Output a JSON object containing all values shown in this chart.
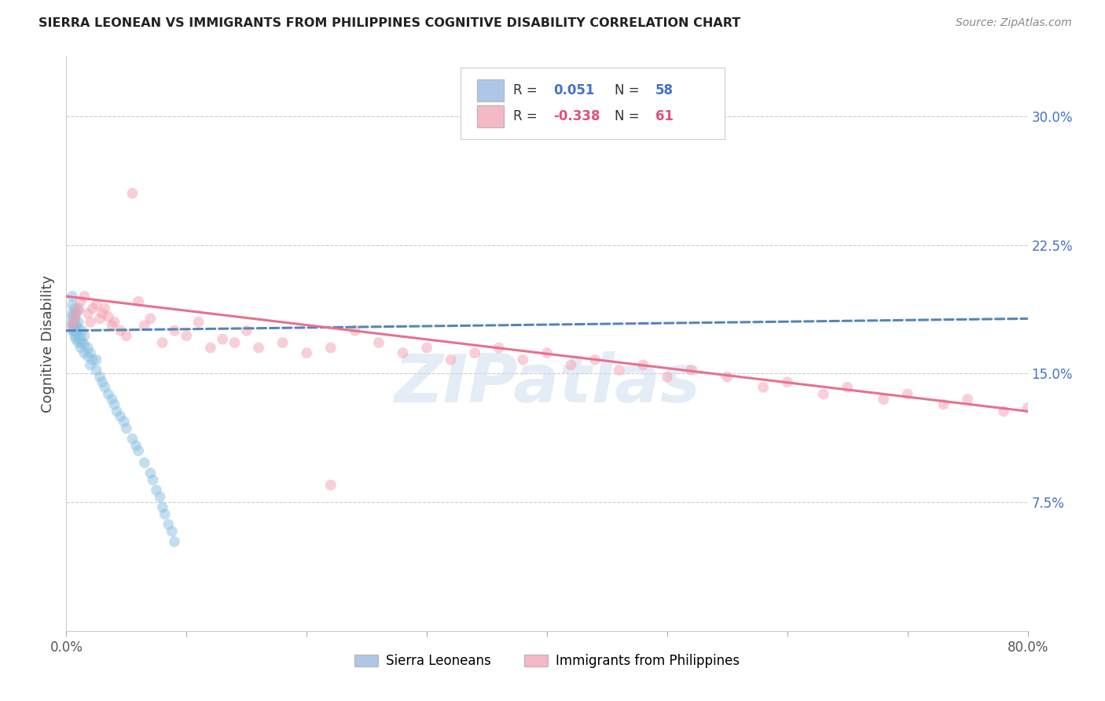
{
  "title": "SIERRA LEONEAN VS IMMIGRANTS FROM PHILIPPINES COGNITIVE DISABILITY CORRELATION CHART",
  "source": "Source: ZipAtlas.com",
  "ylabel": "Cognitive Disability",
  "right_yticks": [
    "30.0%",
    "22.5%",
    "15.0%",
    "7.5%"
  ],
  "right_ytick_vals": [
    0.3,
    0.225,
    0.15,
    0.075
  ],
  "xlim": [
    0.0,
    0.8
  ],
  "ylim": [
    0.0,
    0.335
  ],
  "sl_scatter_x": [
    0.005,
    0.005,
    0.005,
    0.005,
    0.005,
    0.005,
    0.005,
    0.007,
    0.007,
    0.007,
    0.007,
    0.007,
    0.008,
    0.008,
    0.008,
    0.008,
    0.01,
    0.01,
    0.01,
    0.01,
    0.01,
    0.012,
    0.012,
    0.013,
    0.013,
    0.015,
    0.015,
    0.015,
    0.018,
    0.018,
    0.02,
    0.02,
    0.022,
    0.025,
    0.025,
    0.028,
    0.03,
    0.032,
    0.035,
    0.038,
    0.04,
    0.042,
    0.045,
    0.048,
    0.05,
    0.055,
    0.058,
    0.06,
    0.065,
    0.07,
    0.072,
    0.075,
    0.078,
    0.08,
    0.082,
    0.085,
    0.088,
    0.09
  ],
  "sl_scatter_y": [
    0.175,
    0.178,
    0.18,
    0.183,
    0.185,
    0.19,
    0.195,
    0.172,
    0.175,
    0.178,
    0.182,
    0.188,
    0.17,
    0.174,
    0.178,
    0.185,
    0.168,
    0.172,
    0.176,
    0.18,
    0.187,
    0.165,
    0.17,
    0.168,
    0.175,
    0.162,
    0.167,
    0.172,
    0.16,
    0.165,
    0.155,
    0.162,
    0.158,
    0.152,
    0.158,
    0.148,
    0.145,
    0.142,
    0.138,
    0.135,
    0.132,
    0.128,
    0.125,
    0.122,
    0.118,
    0.112,
    0.108,
    0.105,
    0.098,
    0.092,
    0.088,
    0.082,
    0.078,
    0.072,
    0.068,
    0.062,
    0.058,
    0.052
  ],
  "ph_scatter_x": [
    0.005,
    0.007,
    0.008,
    0.01,
    0.012,
    0.015,
    0.018,
    0.02,
    0.022,
    0.025,
    0.028,
    0.03,
    0.032,
    0.035,
    0.038,
    0.04,
    0.045,
    0.05,
    0.055,
    0.06,
    0.065,
    0.07,
    0.08,
    0.09,
    0.1,
    0.11,
    0.12,
    0.13,
    0.14,
    0.15,
    0.16,
    0.18,
    0.2,
    0.22,
    0.24,
    0.26,
    0.28,
    0.3,
    0.32,
    0.34,
    0.36,
    0.38,
    0.4,
    0.42,
    0.44,
    0.46,
    0.48,
    0.5,
    0.52,
    0.55,
    0.58,
    0.6,
    0.63,
    0.65,
    0.68,
    0.7,
    0.73,
    0.75,
    0.78,
    0.8,
    0.22
  ],
  "ph_scatter_y": [
    0.178,
    0.182,
    0.185,
    0.188,
    0.192,
    0.195,
    0.185,
    0.18,
    0.188,
    0.19,
    0.182,
    0.185,
    0.188,
    0.183,
    0.178,
    0.18,
    0.175,
    0.172,
    0.255,
    0.192,
    0.178,
    0.182,
    0.168,
    0.175,
    0.172,
    0.18,
    0.165,
    0.17,
    0.168,
    0.175,
    0.165,
    0.168,
    0.162,
    0.165,
    0.175,
    0.168,
    0.162,
    0.165,
    0.158,
    0.162,
    0.165,
    0.158,
    0.162,
    0.155,
    0.158,
    0.152,
    0.155,
    0.148,
    0.152,
    0.148,
    0.142,
    0.145,
    0.138,
    0.142,
    0.135,
    0.138,
    0.132,
    0.135,
    0.128,
    0.13,
    0.085
  ],
  "sl_trend_x": [
    0.0,
    0.8
  ],
  "sl_trend_y": [
    0.175,
    0.182
  ],
  "ph_trend_x": [
    0.0,
    0.8
  ],
  "ph_trend_y": [
    0.195,
    0.128
  ],
  "watermark": "ZIPatlas",
  "scatter_size": 100,
  "scatter_alpha": 0.5,
  "sl_color": "#89c0e0",
  "ph_color": "#f5a0b0",
  "sl_line_color": "#5585b8",
  "ph_line_color": "#e87090",
  "sl_line_style": "--",
  "ph_line_style": "-"
}
